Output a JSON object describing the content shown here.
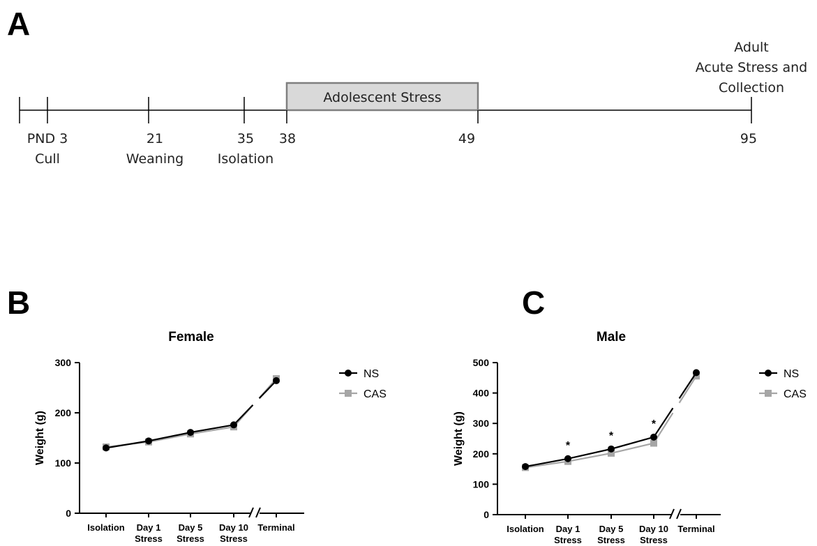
{
  "panel_labels": {
    "a": "A",
    "b": "B",
    "c": "C"
  },
  "timeline": {
    "box_label": "Adolescent Stress",
    "ticks": [
      {
        "top": "",
        "bottom": ""
      },
      {
        "top": "PND 3",
        "bottom": "Cull"
      },
      {
        "top": "21",
        "bottom": "Weaning"
      },
      {
        "top": "35",
        "bottom": "Isolation"
      },
      {
        "top": "38",
        "bottom": ""
      },
      {
        "top": "49",
        "bottom": ""
      },
      {
        "top": "95",
        "bottom": ""
      }
    ],
    "end_label": [
      "Adult",
      "Acute Stress and",
      "Collection"
    ],
    "colors": {
      "box_fill": "#d9d9d9",
      "box_stroke": "#7f7f7f",
      "line": "#000000"
    }
  },
  "chart_data": [
    {
      "type": "line",
      "title": "Female",
      "ylabel": "Weight (g)",
      "xlabel": "",
      "ylim": [
        0,
        300
      ],
      "yticks": [
        0,
        100,
        200,
        300
      ],
      "categories": [
        [
          "Isolation"
        ],
        [
          "Day 1",
          "Stress"
        ],
        [
          "Day 5",
          "Stress"
        ],
        [
          "Day 10",
          "Stress"
        ],
        [
          "Terminal"
        ]
      ],
      "axis_break_between": [
        3,
        4
      ],
      "series": [
        {
          "name": "NS",
          "color": "#000000",
          "marker": "circle",
          "values": [
            130,
            144,
            161,
            176,
            264
          ]
        },
        {
          "name": "CAS",
          "color": "#a6a6a6",
          "marker": "square",
          "values": [
            132,
            142,
            158,
            172,
            268
          ]
        }
      ],
      "significance": [
        "",
        "",
        "",
        "",
        ""
      ],
      "legend_position": "right"
    },
    {
      "type": "line",
      "title": "Male",
      "ylabel": "Weight (g)",
      "xlabel": "",
      "ylim": [
        0,
        500
      ],
      "yticks": [
        0,
        100,
        200,
        300,
        400,
        500
      ],
      "categories": [
        [
          "Isolation"
        ],
        [
          "Day 1",
          "Stress"
        ],
        [
          "Day 5",
          "Stress"
        ],
        [
          "Day 10",
          "Stress"
        ],
        [
          "Terminal"
        ]
      ],
      "axis_break_between": [
        3,
        4
      ],
      "series": [
        {
          "name": "NS",
          "color": "#000000",
          "marker": "circle",
          "values": [
            158,
            184,
            216,
            255,
            467
          ]
        },
        {
          "name": "CAS",
          "color": "#a6a6a6",
          "marker": "square",
          "values": [
            155,
            175,
            202,
            235,
            456
          ]
        }
      ],
      "significance": [
        "",
        "*",
        "*",
        "*",
        ""
      ],
      "legend_position": "right"
    }
  ]
}
